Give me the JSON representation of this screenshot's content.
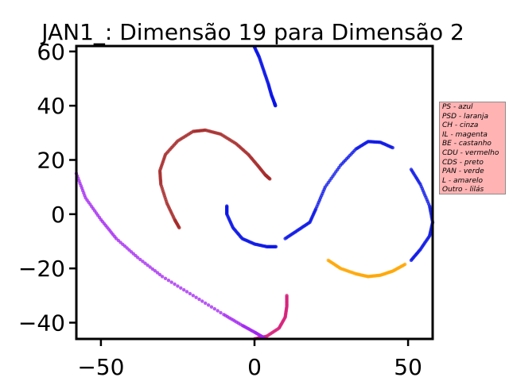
{
  "chart_data": {
    "type": "scatter",
    "title": "JAN1_: Dimensão 19 para Dimensão 2",
    "xlabel": "",
    "ylabel": "",
    "xlim": [
      -58,
      58
    ],
    "ylim": [
      -46,
      62
    ],
    "xticks": [
      -50,
      0,
      50
    ],
    "yticks": [
      -40,
      -20,
      0,
      20,
      40,
      60
    ],
    "tick_labels_x": [
      "−50",
      "0",
      "50"
    ],
    "tick_labels_y": [
      "−40",
      "−20",
      "0",
      "20",
      "40",
      "60"
    ],
    "grid": false,
    "legend_placement": "outside-right",
    "legend": [
      "PS - azul",
      "PSD - laranja",
      "CH - cinza",
      "IL - magenta",
      "BE - castanho",
      "CDU - vermelho",
      "CDS - preto",
      "PAN - verde",
      "L - amarelo",
      "Outro - lilás"
    ],
    "colors": {
      "azul": "#0a14e6",
      "laranja": "#ffa500",
      "cinza": "#999999",
      "magenta": "#d6207a",
      "castanho": "#a0522d",
      "vermelho": "#d81c1c",
      "lilas": "#a020f0",
      "legend_bg": "#ffb3b3"
    },
    "clusters": [
      {
        "color": "#0a14e6",
        "points": [
          [
            0,
            61.6
          ],
          [
            1.5,
            58
          ],
          [
            3,
            53
          ],
          [
            4.5,
            48
          ],
          [
            5.5,
            44
          ],
          [
            6.5,
            41
          ],
          [
            6.8,
            40
          ]
        ]
      },
      {
        "color": "#0a14e6",
        "points": [
          [
            -9,
            3
          ],
          [
            -9,
            0
          ],
          [
            -7,
            -5
          ],
          [
            -4,
            -9
          ],
          [
            0,
            -11
          ],
          [
            4,
            -12
          ],
          [
            7,
            -12
          ]
        ]
      },
      {
        "color": "#0a14e6",
        "points": [
          [
            10,
            -9
          ],
          [
            14,
            -6
          ],
          [
            18,
            -3
          ],
          [
            20,
            2
          ],
          [
            23,
            10
          ],
          [
            28,
            18
          ],
          [
            33,
            24
          ],
          [
            37,
            26.8
          ],
          [
            41,
            26.5
          ],
          [
            45,
            24.5
          ]
        ]
      },
      {
        "color": "#0a14e6",
        "points": [
          [
            51,
            16.5
          ],
          [
            54,
            11
          ],
          [
            57,
            3
          ],
          [
            58,
            -3
          ],
          [
            57,
            -8
          ],
          [
            54,
            -13
          ],
          [
            51,
            -17
          ]
        ]
      },
      {
        "color": "#ffa500",
        "points": [
          [
            24,
            -17
          ],
          [
            28,
            -20
          ],
          [
            33,
            -22
          ],
          [
            37,
            -23
          ],
          [
            41,
            -22.5
          ],
          [
            45,
            -21
          ],
          [
            49,
            -18.5
          ]
        ]
      },
      {
        "color": "#a52a2a",
        "points": [
          [
            -24.5,
            -5
          ],
          [
            -26,
            -2
          ],
          [
            -28.5,
            4
          ],
          [
            -30.5,
            11
          ],
          [
            -30.8,
            16
          ],
          [
            -29,
            22
          ],
          [
            -25,
            27
          ],
          [
            -20,
            30.5
          ],
          [
            -16,
            31
          ],
          [
            -11,
            29.5
          ],
          [
            -6,
            26
          ],
          [
            -2,
            22
          ],
          [
            1,
            18
          ],
          [
            3.5,
            14.5
          ],
          [
            5,
            13
          ]
        ]
      },
      {
        "color": "#d6207a",
        "points": [
          [
            10.5,
            -30
          ],
          [
            10.5,
            -34
          ],
          [
            10,
            -38
          ],
          [
            8,
            -42
          ],
          [
            4,
            -45
          ],
          [
            0,
            -46
          ]
        ]
      },
      {
        "color": "#a020f0",
        "points": [
          [
            -58,
            15
          ],
          [
            -55,
            6
          ],
          [
            -50,
            -2
          ],
          [
            -45,
            -9
          ],
          [
            -38,
            -16
          ],
          [
            -30,
            -23
          ],
          [
            -20,
            -30
          ],
          [
            -10,
            -37
          ],
          [
            -4,
            -41
          ],
          [
            0,
            -43.5
          ],
          [
            3,
            -45.5
          ]
        ]
      }
    ]
  }
}
